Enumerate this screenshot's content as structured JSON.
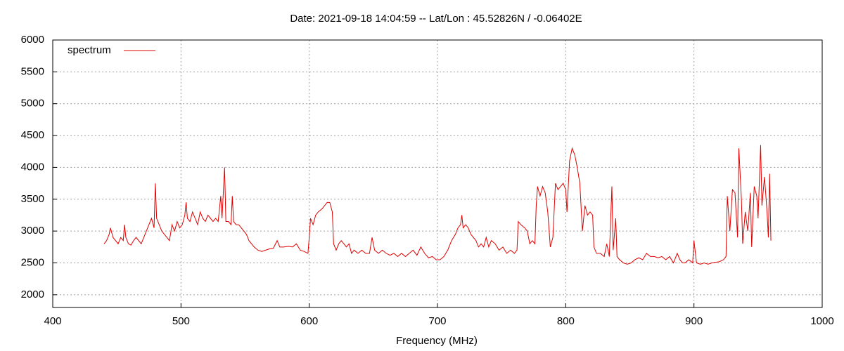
{
  "chart_data": {
    "type": "line",
    "title": "Date: 2021-09-18 14:04:59  --  Lat/Lon : 45.52826N / -0.06402E",
    "x_label": "Frequency (MHz)",
    "xlim": [
      400,
      1000
    ],
    "xticks": [
      400,
      500,
      600,
      700,
      800,
      900,
      1000
    ],
    "ylim": [
      1800,
      6000
    ],
    "yticks": [
      2000,
      2500,
      3000,
      3500,
      4000,
      4500,
      5000,
      5500,
      6000
    ],
    "grid": true,
    "legend": "top-left",
    "x": [
      440,
      442,
      444,
      445,
      447,
      449,
      451,
      453,
      455,
      456,
      457,
      459,
      461,
      463,
      465,
      467,
      469,
      471,
      473,
      475,
      477,
      479,
      480,
      481,
      483,
      485,
      487,
      489,
      491,
      493,
      495,
      497,
      499,
      501,
      503,
      504,
      505,
      507,
      509,
      511,
      513,
      515,
      517,
      519,
      521,
      523,
      525,
      527,
      529,
      531,
      532,
      534,
      535,
      537,
      539,
      540,
      541,
      543,
      545,
      547,
      549,
      551,
      553,
      555,
      557,
      560,
      563,
      566,
      569,
      572,
      575,
      577,
      580,
      584,
      587,
      590,
      593,
      596,
      599,
      600,
      601,
      603,
      605,
      607,
      610,
      612,
      614,
      616,
      618,
      619,
      621,
      623,
      625,
      627,
      629,
      631,
      633,
      635,
      638,
      641,
      644,
      647,
      649,
      651,
      654,
      657,
      660,
      663,
      666,
      669,
      672,
      675,
      678,
      681,
      684,
      687,
      690,
      693,
      696,
      699,
      702,
      705,
      708,
      711,
      714,
      716,
      718,
      719,
      720,
      722,
      724,
      726,
      728,
      730,
      732,
      734,
      736,
      738,
      740,
      742,
      745,
      748,
      751,
      754,
      757,
      760,
      762,
      763,
      765,
      768,
      770,
      772,
      774,
      776,
      777,
      778,
      780,
      782,
      784,
      786,
      788,
      790,
      792,
      794,
      796,
      798,
      800,
      801,
      803,
      805,
      807,
      809,
      811,
      813,
      815,
      817,
      819,
      821,
      822,
      824,
      827,
      830,
      832,
      834,
      836,
      837,
      839,
      840,
      842,
      845,
      848,
      851,
      854,
      857,
      860,
      863,
      866,
      869,
      872,
      875,
      878,
      881,
      884,
      887,
      889,
      891,
      893,
      896,
      899,
      900,
      902,
      905,
      908,
      911,
      914,
      917,
      920,
      923,
      925,
      926,
      928,
      930,
      932,
      934,
      935,
      937,
      938,
      940,
      942,
      944,
      945,
      947,
      949,
      950,
      952,
      953,
      955,
      957,
      958,
      959,
      960
    ],
    "series": [
      {
        "name": "spectrum",
        "color": "#e00000",
        "values": [
          2800,
          2850,
          2950,
          3050,
          2900,
          2850,
          2800,
          2900,
          2850,
          3100,
          2900,
          2800,
          2780,
          2850,
          2900,
          2850,
          2800,
          2900,
          3000,
          3100,
          3200,
          3050,
          3750,
          3200,
          3100,
          3000,
          2950,
          2900,
          2850,
          3100,
          3000,
          3150,
          3050,
          3100,
          3250,
          3450,
          3200,
          3150,
          3300,
          3200,
          3100,
          3300,
          3200,
          3150,
          3250,
          3200,
          3150,
          3200,
          3150,
          3550,
          3200,
          4000,
          3150,
          3150,
          3100,
          3550,
          3150,
          3100,
          3100,
          3050,
          3000,
          2950,
          2850,
          2800,
          2750,
          2700,
          2680,
          2700,
          2720,
          2730,
          2850,
          2750,
          2750,
          2760,
          2750,
          2800,
          2700,
          2680,
          2650,
          2900,
          3200,
          3100,
          3250,
          3300,
          3350,
          3400,
          3450,
          3450,
          3300,
          2800,
          2700,
          2800,
          2850,
          2800,
          2750,
          2800,
          2650,
          2700,
          2650,
          2700,
          2650,
          2650,
          2900,
          2700,
          2650,
          2700,
          2650,
          2620,
          2650,
          2600,
          2650,
          2600,
          2650,
          2700,
          2620,
          2750,
          2650,
          2580,
          2600,
          2550,
          2550,
          2600,
          2700,
          2850,
          2950,
          3050,
          3100,
          3250,
          3050,
          3100,
          3050,
          2950,
          2900,
          2850,
          2750,
          2800,
          2750,
          2900,
          2750,
          2850,
          2800,
          2700,
          2750,
          2650,
          2700,
          2650,
          2700,
          3150,
          3100,
          3050,
          3000,
          2800,
          2850,
          2800,
          3400,
          3700,
          3550,
          3700,
          3600,
          3300,
          2750,
          2900,
          3750,
          3650,
          3700,
          3750,
          3650,
          3300,
          4100,
          4300,
          4200,
          4000,
          3750,
          3000,
          3400,
          3250,
          3300,
          3250,
          2750,
          2650,
          2650,
          2600,
          2800,
          2600,
          3700,
          2700,
          3200,
          2600,
          2550,
          2500,
          2480,
          2500,
          2550,
          2580,
          2550,
          2650,
          2600,
          2600,
          2580,
          2600,
          2550,
          2600,
          2500,
          2650,
          2550,
          2500,
          2500,
          2550,
          2500,
          2850,
          2500,
          2480,
          2500,
          2480,
          2500,
          2510,
          2520,
          2550,
          2600,
          3550,
          3000,
          3650,
          3600,
          2900,
          4300,
          3500,
          2800,
          3300,
          3000,
          3600,
          2750,
          3700,
          3550,
          3200,
          4350,
          3400,
          3850,
          3300,
          2900,
          3900,
          2850
        ]
      }
    ]
  }
}
